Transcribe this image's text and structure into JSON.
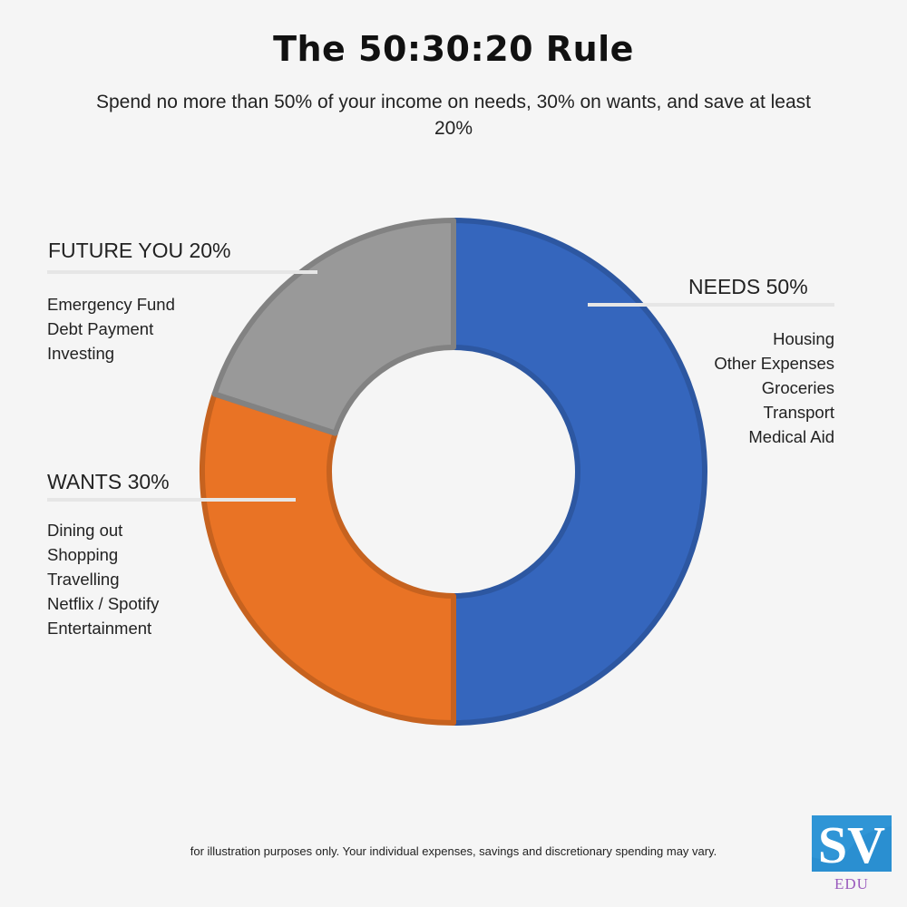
{
  "title": "The 50:30:20 Rule",
  "subtitle": "Spend no more than 50% of your income on needs, 30% on wants, and save at least 20%",
  "chart_data": {
    "type": "pie",
    "variant": "donut",
    "title": "The 50:30:20 Rule",
    "slices": [
      {
        "name": "NEEDS",
        "value": 50,
        "label": "NEEDS 50%",
        "color": "#3566bd",
        "items": [
          "Housing",
          "Other Expenses",
          "Groceries",
          "Transport",
          "Medical Aid"
        ]
      },
      {
        "name": "WANTS",
        "value": 30,
        "label": "WANTS 30%",
        "color": "#e97325",
        "items": [
          "Dining out",
          "Shopping",
          "Travelling",
          "Netflix / Spotify",
          "Entertainment"
        ]
      },
      {
        "name": "FUTURE YOU",
        "value": 20,
        "label": "FUTURE YOU 20%",
        "color": "#999999",
        "items": [
          "Emergency Fund",
          "Debt Payment",
          "Investing"
        ]
      }
    ]
  },
  "footnote": "for illustration purposes only. Your individual expenses, savings and discretionary spending may vary.",
  "logo": {
    "mark": "SV",
    "sub": "EDU",
    "colors": {
      "mark": "#2a8fd1",
      "sub": "#9a5bbd"
    }
  }
}
